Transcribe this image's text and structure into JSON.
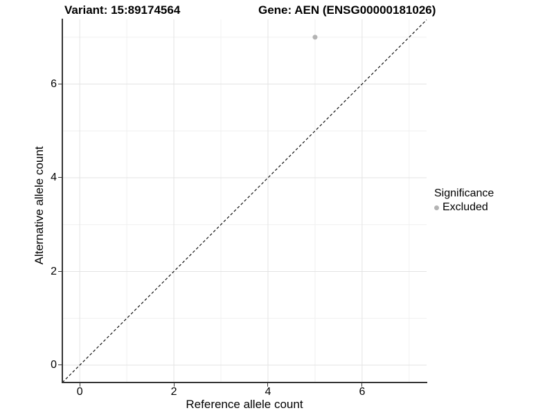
{
  "figure": {
    "title_variant": "Variant: 15:89174564",
    "title_gene": "Gene: AEN (ENSG00000181026)"
  },
  "axes": {
    "x_label": "Reference allele count",
    "y_label": "Alternative allele count"
  },
  "legend": {
    "title": "Significance",
    "entries": [
      {
        "label": "Excluded",
        "color": "#b3b3b3"
      }
    ]
  },
  "chart_data": {
    "type": "scatter",
    "title": "Variant: 15:89174564 — Gene: AEN (ENSG00000181026)",
    "xlabel": "Reference allele count",
    "ylabel": "Alternative allele count",
    "xlim": [
      -0.37,
      7.37
    ],
    "ylim": [
      -0.37,
      7.38
    ],
    "x_major_ticks": [
      0,
      2,
      4,
      6
    ],
    "y_major_ticks": [
      0,
      2,
      4,
      6
    ],
    "x_minor_gridlines": [
      1,
      3,
      5,
      7
    ],
    "y_minor_gridlines": [
      1,
      3,
      5,
      7
    ],
    "grid": true,
    "legend_position": "right",
    "series": [
      {
        "name": "Excluded",
        "color": "#b3b3b3",
        "point_radius": 3.5,
        "points": [
          {
            "x": 5,
            "y": 7
          }
        ]
      }
    ],
    "reference_line": {
      "style": "dashed",
      "slope": 1,
      "intercept": 0,
      "color": "#111111"
    }
  },
  "colors": {
    "major_grid": "#e3e3e3",
    "minor_grid": "#f0f0f0",
    "axis_line": "#333333",
    "point": "#b3b3b3",
    "text": "#000000"
  }
}
